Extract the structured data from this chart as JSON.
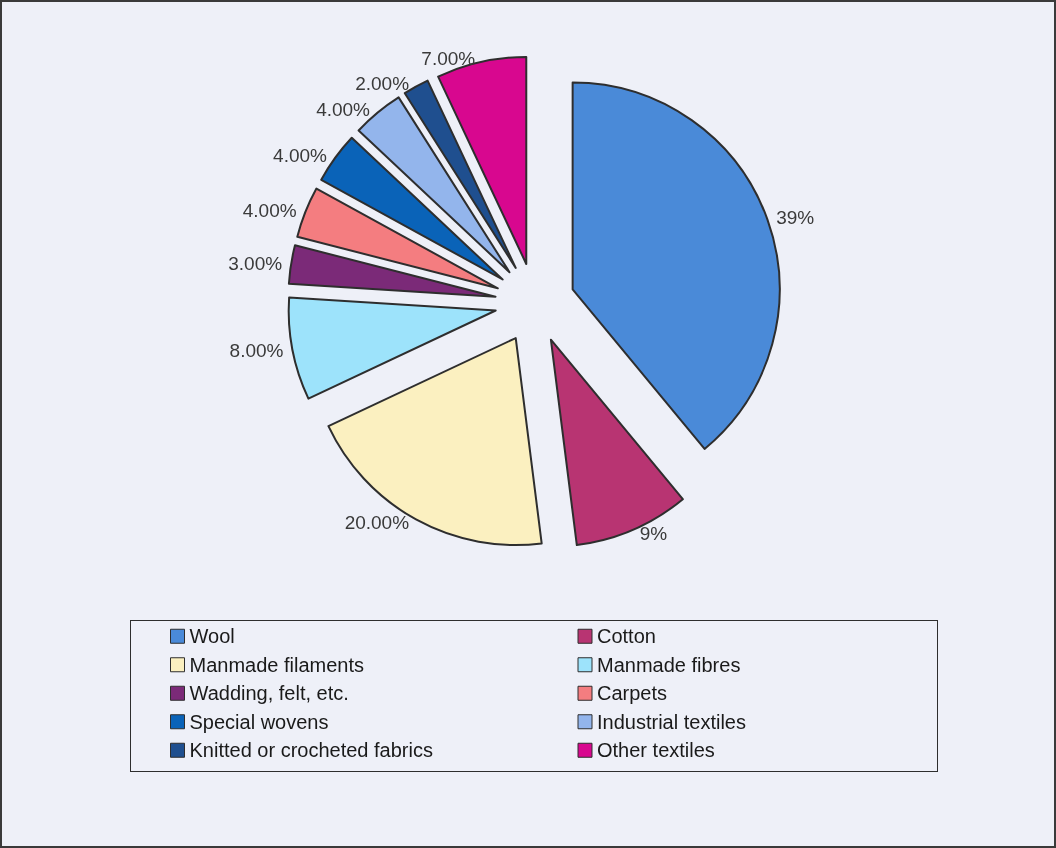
{
  "chart_data": {
    "type": "pie",
    "categories": [
      "Wool",
      "Cotton",
      "Manmade filaments",
      "Manmade fibres",
      "Wadding, felt, etc.",
      "Carpets",
      "Special wovens",
      "Industrial textiles",
      "Knitted or crocheted fabrics",
      "Other textiles"
    ],
    "values": [
      39,
      9,
      20,
      8,
      3,
      4,
      4,
      4,
      2,
      7
    ],
    "colors": [
      "#4a8ad8",
      "#b83472",
      "#fbf0c0",
      "#9de3fb",
      "#7b2a78",
      "#f47d80",
      "#0a63b8",
      "#93b5ec",
      "#1f4f8f",
      "#d8078f"
    ],
    "value_labels": [
      "39%",
      "9%",
      "20.00%",
      "8.00%",
      "3.00%",
      "4.00%",
      "4.00%",
      "4.00%",
      "2.00%",
      "7.00%"
    ],
    "legend": "bottom"
  }
}
